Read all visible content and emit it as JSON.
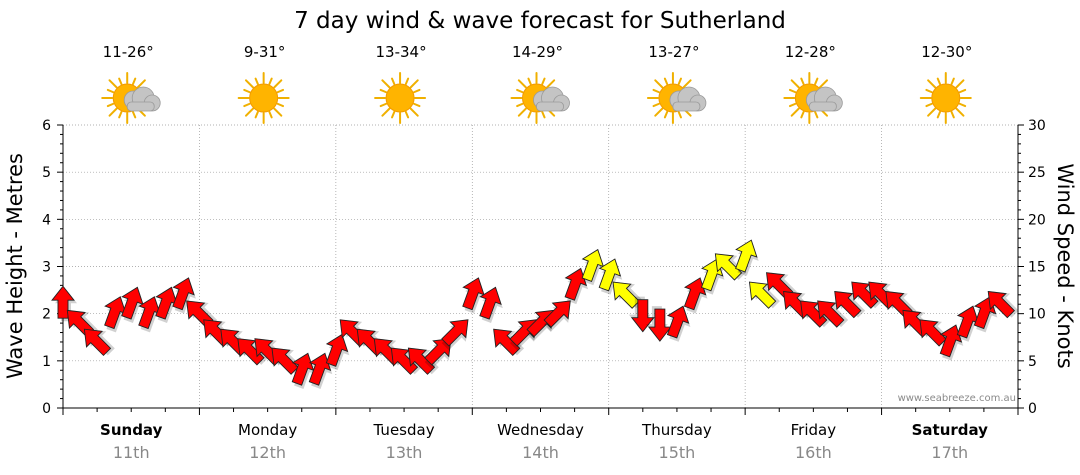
{
  "chart_data": {
    "type": "line",
    "title": "7 day wind & wave forecast for Sutherland",
    "ylabel": "Wave Height - Metres",
    "ylabel_right": "Wind Speed - Knots",
    "ylim": [
      0,
      6
    ],
    "ylim_right": [
      0,
      30
    ],
    "yticks": [
      "0",
      "1",
      "2",
      "3",
      "4",
      "5",
      "6"
    ],
    "yticks_right": [
      "0",
      "5",
      "10",
      "15",
      "20",
      "25",
      "30"
    ],
    "watermark": "www.seabreeze.com.au",
    "days": [
      {
        "name": "Sunday",
        "date": "11th",
        "temp": "11-26°",
        "icon": "sun-cloud-icon",
        "bold": true
      },
      {
        "name": "Monday",
        "date": "12th",
        "temp": "9-31°",
        "icon": "sun-icon",
        "bold": false
      },
      {
        "name": "Tuesday",
        "date": "13th",
        "temp": "13-34°",
        "icon": "sun-icon",
        "bold": false
      },
      {
        "name": "Wednesday",
        "date": "14th",
        "temp": "14-29°",
        "icon": "sun-cloud-icon",
        "bold": false
      },
      {
        "name": "Thursday",
        "date": "15th",
        "temp": "13-27°",
        "icon": "sun-cloud-icon",
        "bold": false
      },
      {
        "name": "Friday",
        "date": "16th",
        "temp": "12-28°",
        "icon": "sun-cloud-icon",
        "bold": false
      },
      {
        "name": "Saturday",
        "date": "17th",
        "temp": "12-30°",
        "icon": "sun-icon",
        "bold": true
      }
    ],
    "colors": {
      "light": "#ff0000",
      "moderate": "#ffff00",
      "outline": "#222222",
      "grid": "#999999"
    },
    "moderate_threshold_knots": 14,
    "series": [
      {
        "name": "Wind Speed (knots)",
        "hours": [
          0,
          3,
          6,
          9,
          12,
          15,
          18,
          21,
          24,
          27,
          30,
          33,
          36,
          39,
          42,
          45,
          48,
          51,
          54,
          57,
          60,
          63,
          66,
          69,
          72,
          75,
          78,
          81,
          84,
          87,
          90,
          93,
          96,
          99,
          102,
          105,
          108,
          111,
          114,
          117,
          120,
          123,
          126,
          129,
          132,
          135,
          138,
          141,
          144,
          147,
          150,
          153,
          156,
          159,
          162,
          165
        ],
        "values": [
          11,
          9,
          7,
          10,
          11,
          10,
          11,
          12,
          10,
          8,
          7,
          6,
          6,
          5,
          4,
          4,
          6,
          8,
          7,
          6,
          5,
          5,
          6,
          8,
          12,
          11,
          7,
          8,
          9,
          10,
          13,
          15,
          14,
          12,
          10,
          9,
          9,
          12,
          14,
          15,
          16,
          12,
          13,
          11,
          10,
          10,
          11,
          12,
          12,
          11,
          9,
          8,
          7,
          9,
          10,
          11
        ],
        "directions": [
          0,
          315,
          315,
          20,
          20,
          20,
          20,
          20,
          -45,
          -45,
          -45,
          -45,
          -45,
          -45,
          20,
          20,
          20,
          -45,
          -45,
          -45,
          -45,
          -45,
          45,
          45,
          20,
          20,
          -45,
          45,
          45,
          45,
          20,
          20,
          20,
          -45,
          180,
          180,
          20,
          20,
          20,
          -45,
          20,
          -45,
          -45,
          -45,
          -45,
          -45,
          -45,
          -45,
          -45,
          -45,
          -45,
          -45,
          20,
          20,
          20,
          -45
        ]
      }
    ]
  }
}
